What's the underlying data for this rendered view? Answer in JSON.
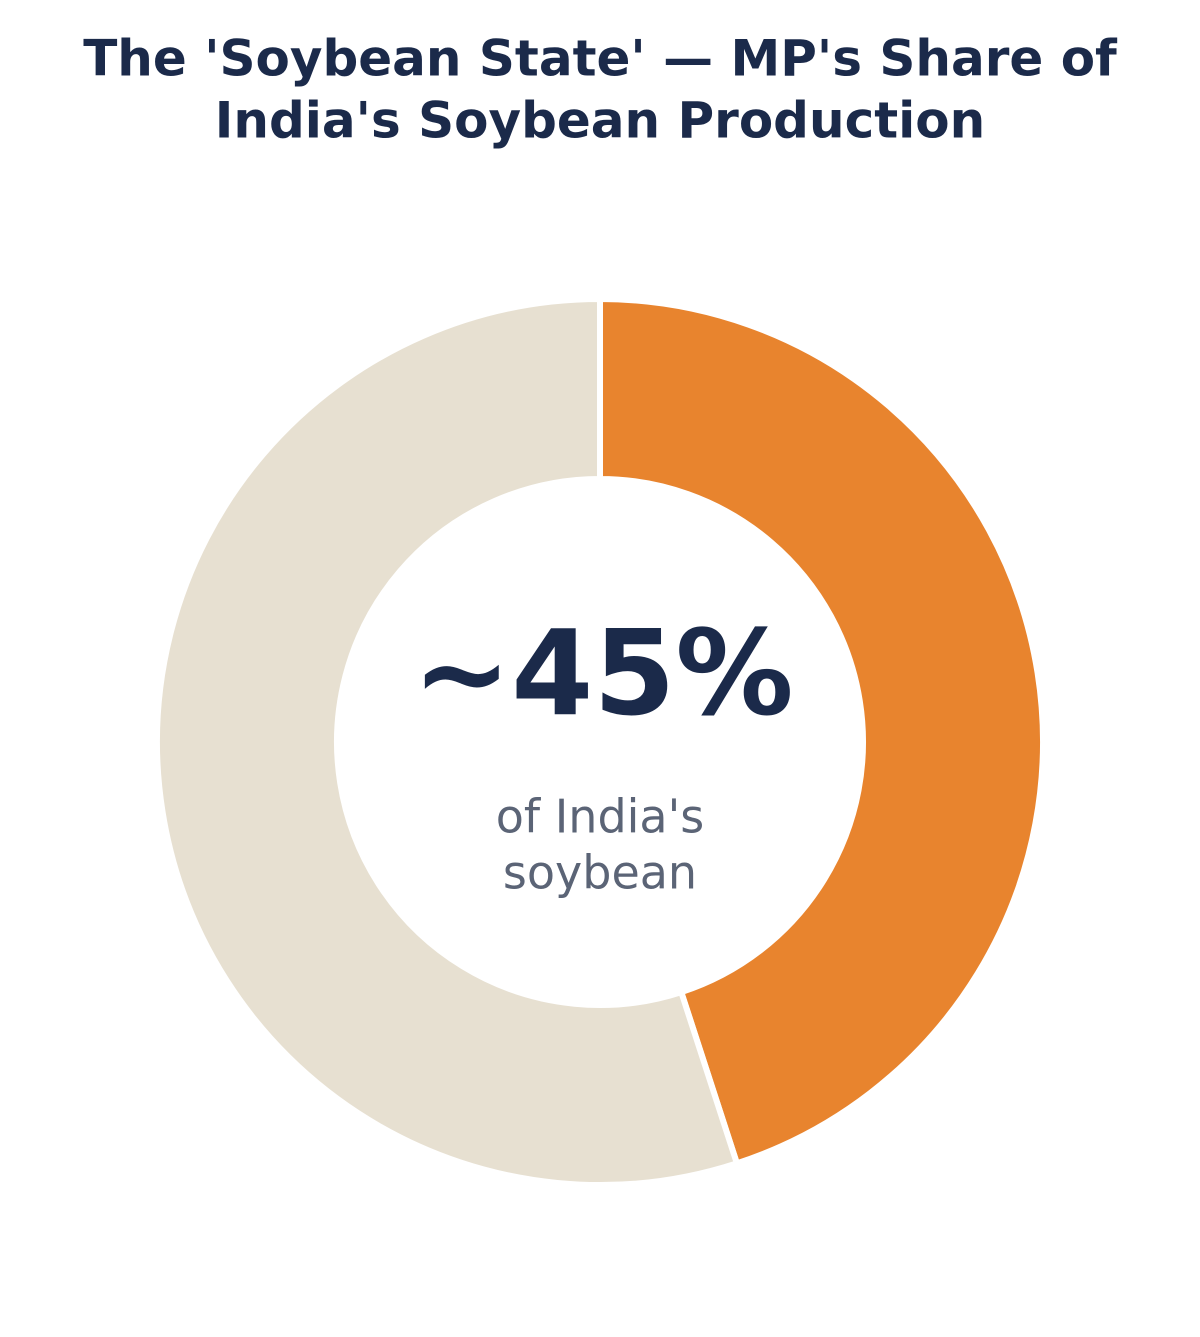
{
  "chart_data": {
    "type": "donut",
    "title": [
      "The 'Soybean State' — MP's Share of",
      "India's Soybean Production"
    ],
    "values": [
      45,
      55
    ],
    "value_labels": [
      "~45%",
      null
    ],
    "colors": [
      "#e8842e",
      "#e7e0d1"
    ],
    "center_sublabel": [
      "of India's",
      "soybean"
    ]
  }
}
